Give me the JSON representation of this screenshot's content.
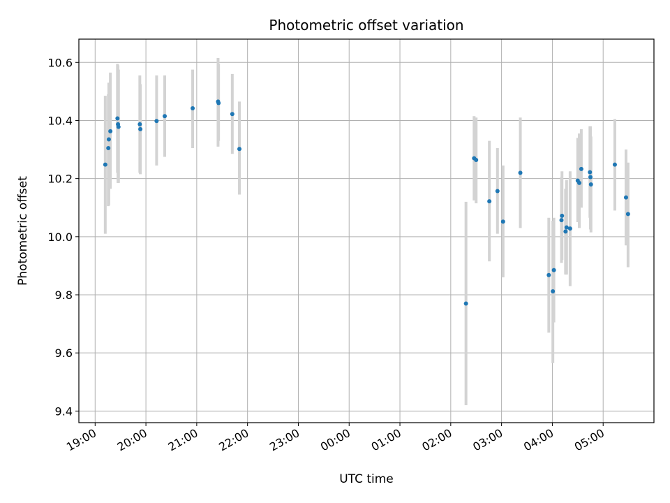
{
  "chart_data": {
    "type": "scatter",
    "title": "Photometric offset variation",
    "xlabel": "UTC time",
    "ylabel": "Photometric offset",
    "x_unit": "hours since 19:00 UTC",
    "xlim": [
      -0.32,
      11.0
    ],
    "ylim": [
      9.36,
      10.68
    ],
    "x_ticks": [
      {
        "value": 0,
        "label": "19:00"
      },
      {
        "value": 1,
        "label": "20:00"
      },
      {
        "value": 2,
        "label": "21:00"
      },
      {
        "value": 3,
        "label": "22:00"
      },
      {
        "value": 4,
        "label": "23:00"
      },
      {
        "value": 5,
        "label": "00:00"
      },
      {
        "value": 6,
        "label": "01:00"
      },
      {
        "value": 7,
        "label": "02:00"
      },
      {
        "value": 8,
        "label": "03:00"
      },
      {
        "value": 9,
        "label": "04:00"
      },
      {
        "value": 10,
        "label": "05:00"
      }
    ],
    "y_ticks": [
      {
        "value": 9.4,
        "label": "9.4"
      },
      {
        "value": 9.6,
        "label": "9.6"
      },
      {
        "value": 9.8,
        "label": "9.8"
      },
      {
        "value": 10.0,
        "label": "10.0"
      },
      {
        "value": 10.2,
        "label": "10.2"
      },
      {
        "value": 10.4,
        "label": "10.4"
      },
      {
        "value": 10.6,
        "label": "10.6"
      }
    ],
    "grid": true,
    "colors": {
      "points": "#1f77b4",
      "error_bars": "#d3d3d3",
      "grid": "#b0b0b0"
    },
    "points": [
      {
        "x": 0.2,
        "y": 10.248,
        "ylo": 10.01,
        "yhi": 10.485
      },
      {
        "x": 0.26,
        "y": 10.305,
        "ylo": 10.105,
        "yhi": 10.49
      },
      {
        "x": 0.27,
        "y": 10.335,
        "ylo": 10.11,
        "yhi": 10.53
      },
      {
        "x": 0.3,
        "y": 10.363,
        "ylo": 10.165,
        "yhi": 10.565
      },
      {
        "x": 0.44,
        "y": 10.407,
        "ylo": 10.22,
        "yhi": 10.595
      },
      {
        "x": 0.45,
        "y": 10.387,
        "ylo": 10.185,
        "yhi": 10.59
      },
      {
        "x": 0.46,
        "y": 10.378,
        "ylo": 10.185,
        "yhi": 10.575
      },
      {
        "x": 0.88,
        "y": 10.387,
        "ylo": 10.22,
        "yhi": 10.555
      },
      {
        "x": 0.89,
        "y": 10.37,
        "ylo": 10.215,
        "yhi": 10.525
      },
      {
        "x": 1.21,
        "y": 10.398,
        "ylo": 10.245,
        "yhi": 10.555
      },
      {
        "x": 1.37,
        "y": 10.415,
        "ylo": 10.275,
        "yhi": 10.555
      },
      {
        "x": 1.92,
        "y": 10.442,
        "ylo": 10.305,
        "yhi": 10.575
      },
      {
        "x": 2.42,
        "y": 10.465,
        "ylo": 10.31,
        "yhi": 10.615
      },
      {
        "x": 2.43,
        "y": 10.46,
        "ylo": 10.33,
        "yhi": 10.595
      },
      {
        "x": 2.7,
        "y": 10.422,
        "ylo": 10.285,
        "yhi": 10.56
      },
      {
        "x": 2.84,
        "y": 10.302,
        "ylo": 10.145,
        "yhi": 10.465
      },
      {
        "x": 7.3,
        "y": 9.77,
        "ylo": 9.42,
        "yhi": 10.12
      },
      {
        "x": 7.46,
        "y": 10.27,
        "ylo": 10.125,
        "yhi": 10.415
      },
      {
        "x": 7.5,
        "y": 10.264,
        "ylo": 10.115,
        "yhi": 10.41
      },
      {
        "x": 7.76,
        "y": 10.122,
        "ylo": 9.915,
        "yhi": 10.33
      },
      {
        "x": 7.92,
        "y": 10.157,
        "ylo": 10.01,
        "yhi": 10.305
      },
      {
        "x": 8.03,
        "y": 10.052,
        "ylo": 9.86,
        "yhi": 10.245
      },
      {
        "x": 8.37,
        "y": 10.22,
        "ylo": 10.03,
        "yhi": 10.41
      },
      {
        "x": 8.93,
        "y": 9.868,
        "ylo": 9.67,
        "yhi": 10.065
      },
      {
        "x": 9.01,
        "y": 9.812,
        "ylo": 9.565,
        "yhi": 10.055
      },
      {
        "x": 9.03,
        "y": 9.885,
        "ylo": 9.705,
        "yhi": 10.065
      },
      {
        "x": 9.18,
        "y": 10.057,
        "ylo": 9.91,
        "yhi": 10.205
      },
      {
        "x": 9.19,
        "y": 10.072,
        "ylo": 9.92,
        "yhi": 10.225
      },
      {
        "x": 9.26,
        "y": 10.018,
        "ylo": 9.87,
        "yhi": 10.165
      },
      {
        "x": 9.28,
        "y": 10.032,
        "ylo": 9.87,
        "yhi": 10.195
      },
      {
        "x": 9.35,
        "y": 10.028,
        "ylo": 9.83,
        "yhi": 10.225
      },
      {
        "x": 9.5,
        "y": 10.193,
        "ylo": 10.05,
        "yhi": 10.34
      },
      {
        "x": 9.53,
        "y": 10.185,
        "ylo": 10.03,
        "yhi": 10.355
      },
      {
        "x": 9.57,
        "y": 10.233,
        "ylo": 10.1,
        "yhi": 10.37
      },
      {
        "x": 9.74,
        "y": 10.222,
        "ylo": 10.065,
        "yhi": 10.38
      },
      {
        "x": 9.75,
        "y": 10.205,
        "ylo": 10.025,
        "yhi": 10.38
      },
      {
        "x": 9.76,
        "y": 10.18,
        "ylo": 10.015,
        "yhi": 10.345
      },
      {
        "x": 10.23,
        "y": 10.248,
        "ylo": 10.09,
        "yhi": 10.405
      },
      {
        "x": 10.45,
        "y": 10.135,
        "ylo": 9.97,
        "yhi": 10.3
      },
      {
        "x": 10.49,
        "y": 10.078,
        "ylo": 9.895,
        "yhi": 10.255
      }
    ]
  }
}
